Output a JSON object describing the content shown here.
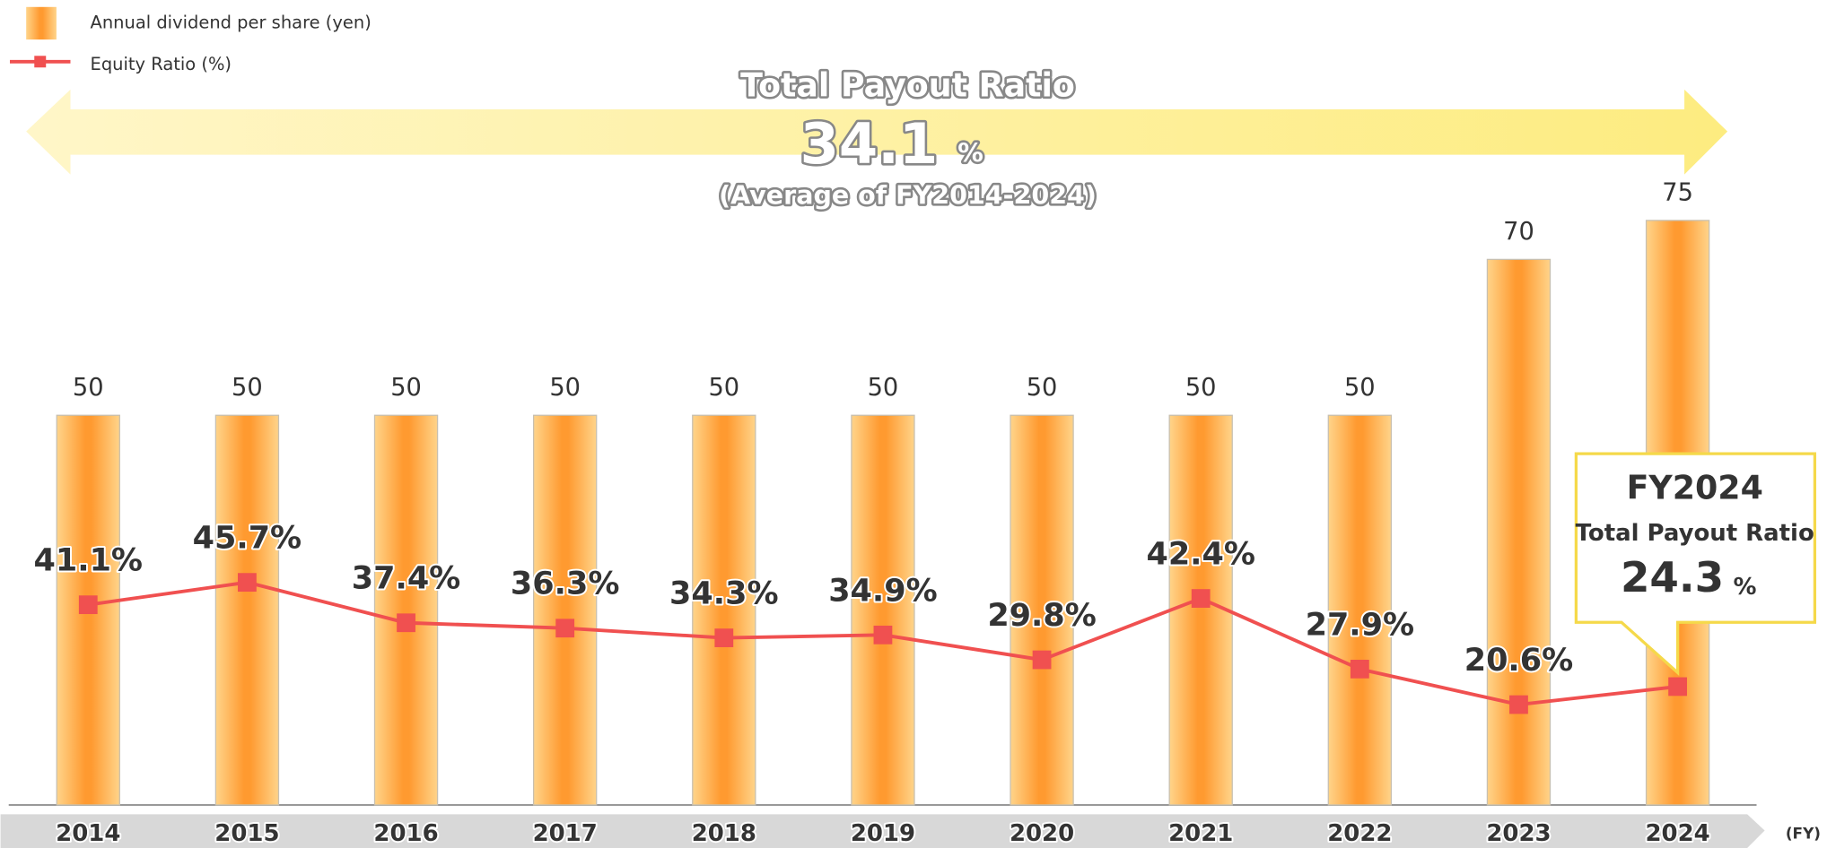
{
  "chart_data": {
    "type": "combo",
    "categories": [
      "2014",
      "2015",
      "2016",
      "2017",
      "2018",
      "2019",
      "2020",
      "2021",
      "2022",
      "2023",
      "2024"
    ],
    "series": [
      {
        "name": "Annual dividend per share (yen)",
        "type": "bar",
        "color": "#ff9a30",
        "values": [
          50,
          50,
          50,
          50,
          50,
          50,
          50,
          50,
          50,
          70,
          75
        ]
      },
      {
        "name": "Equity Ratio (%)",
        "type": "line",
        "axis": "y2",
        "color": "#f05050",
        "values": [
          41.1,
          45.7,
          37.4,
          36.3,
          34.3,
          34.9,
          29.8,
          42.4,
          27.9,
          20.6,
          24.3
        ],
        "value_labels": [
          "41.1%",
          "45.7%",
          "37.4%",
          "36.3%",
          "34.3%",
          "34.9%",
          "29.8%",
          "42.4%",
          "27.9%",
          "20.6%",
          null
        ]
      }
    ],
    "ylim": [
      0,
      100
    ],
    "y2lim": [
      0,
      160
    ],
    "x_label": "(FY)",
    "legend": "top-left",
    "banner": {
      "title": "Total Payout Ratio",
      "value": 34.1,
      "unit": "%",
      "subtitle": "(Average of FY2014-2024)"
    },
    "callout": {
      "title": "FY2024",
      "subtitle": "Total Payout Ratio",
      "value": 24.3,
      "unit": "%"
    }
  }
}
